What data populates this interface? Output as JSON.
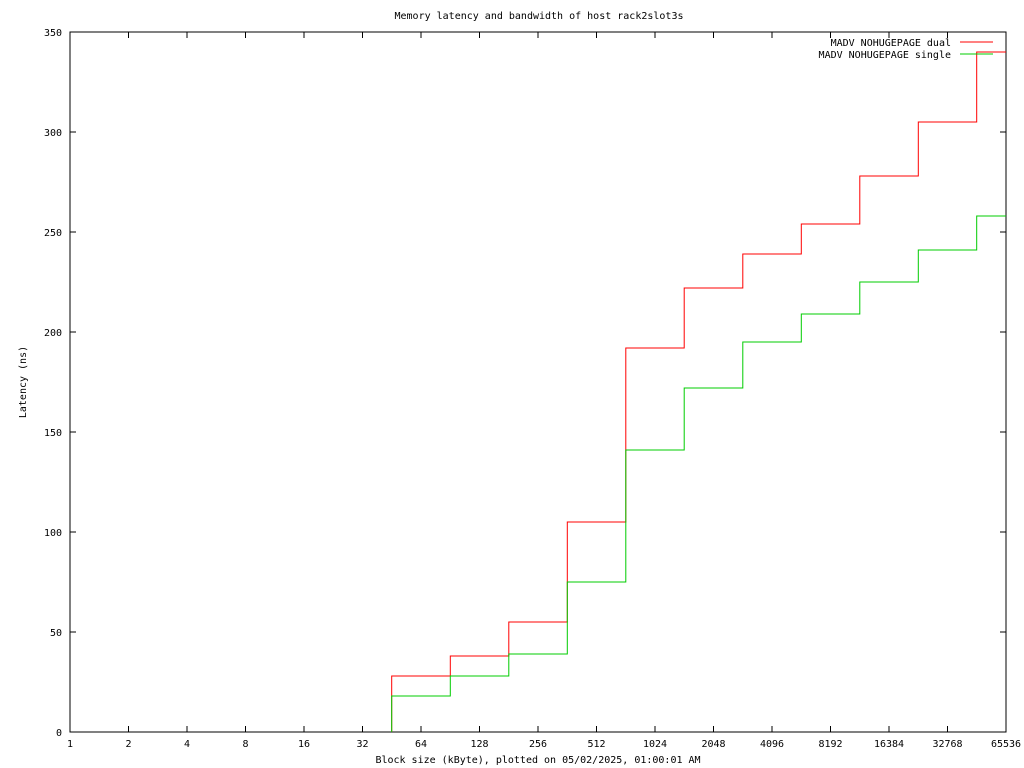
{
  "chart_data": {
    "type": "line",
    "step": true,
    "title": "Memory latency and bandwidth of host rack2slot3s",
    "xlabel": "Block size (kByte), plotted on 05/02/2025, 01:00:01 AM",
    "ylabel": "Latency (ns)",
    "xscale": "log2",
    "xlim": [
      1,
      65536
    ],
    "ylim": [
      0,
      350
    ],
    "x_ticks": [
      "1",
      "2",
      "4",
      "8",
      "16",
      "32",
      "64",
      "128",
      "256",
      "512",
      "1024",
      "2048",
      "4096",
      "8192",
      "16384",
      "32768",
      "65536"
    ],
    "y_ticks": [
      "0",
      "50",
      "100",
      "150",
      "200",
      "250",
      "300",
      "350"
    ],
    "grid": false,
    "legend": "top-right",
    "series": [
      {
        "name": "MADV NOHUGEPAGE dual",
        "color": "#ff0000",
        "x": [
          45.25,
          90.51,
          181.02,
          362.04,
          724.08,
          1448.15,
          2896.31,
          5792.62,
          11585.24,
          23170.48,
          46340.95
        ],
        "values": [
          28,
          38,
          55,
          105,
          192,
          222,
          239,
          254,
          278,
          305,
          340
        ]
      },
      {
        "name": "MADV NOHUGEPAGE single",
        "color": "#00cc00",
        "x": [
          45.25,
          90.51,
          181.02,
          362.04,
          724.08,
          1448.15,
          2896.31,
          5792.62,
          11585.24,
          23170.48,
          46340.95
        ],
        "values": [
          18,
          28,
          39,
          75,
          141,
          172,
          195,
          209,
          225,
          241,
          258
        ]
      }
    ]
  }
}
